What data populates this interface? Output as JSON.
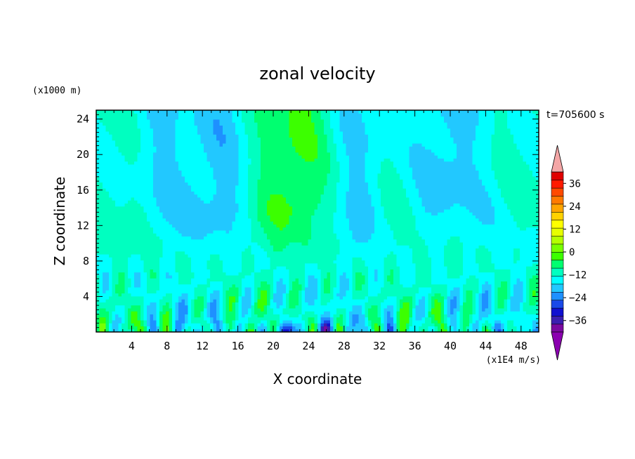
{
  "chart_data": {
    "type": "heatmap",
    "title": "zonal velocity",
    "xlabel": "X coordinate",
    "ylabel": "Z coordinate",
    "x_unit": "(x1E4 m/s)",
    "y_unit": "(x1000 m)",
    "time_label": "t=705600 s",
    "xlim": [
      0,
      50
    ],
    "ylim": [
      0,
      25
    ],
    "x_ticks": [
      4,
      8,
      12,
      16,
      20,
      24,
      28,
      32,
      36,
      40,
      44,
      48
    ],
    "y_ticks": [
      4,
      8,
      12,
      16,
      20,
      24
    ],
    "colorbar": {
      "min": -42,
      "max": 42,
      "step": 6,
      "tick_values": [
        -36,
        -24,
        -12,
        0,
        12,
        24,
        36
      ],
      "tick_labels": [
        "−36",
        "−24",
        "−12",
        "0",
        "12",
        "24",
        "36"
      ],
      "colors": [
        "#7a0aa0",
        "#3b1fb0",
        "#1010d0",
        "#1a4ae8",
        "#1e90ff",
        "#22c8ff",
        "#00ffff",
        "#00ffc0",
        "#00ff70",
        "#3cff00",
        "#78ff00",
        "#b4ff00",
        "#e6ff00",
        "#ffff00",
        "#ffd200",
        "#ffa500",
        "#ff7a00",
        "#ff4a00",
        "#ff1a00",
        "#e00000"
      ],
      "over_color": "#f4a6a6",
      "under_color": "#8b00b0"
    }
  }
}
